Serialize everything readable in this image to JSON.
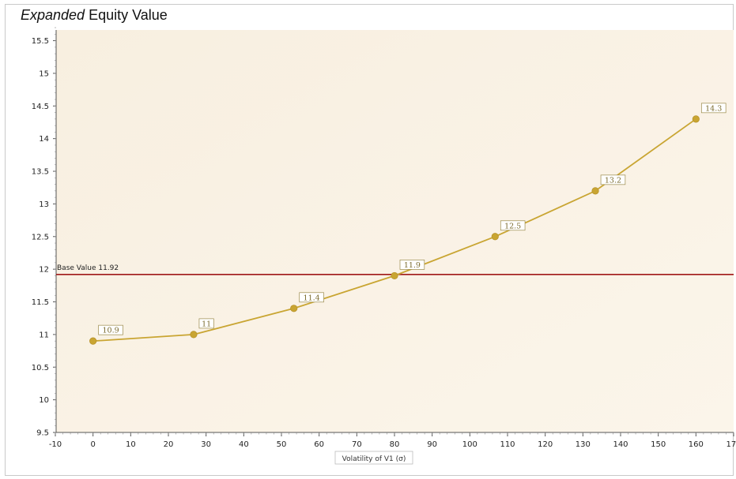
{
  "title_prefix": "Expanded",
  "title_rest": " Equity Value",
  "chart_data": {
    "type": "line",
    "title": "Expanded Equity Value",
    "xlabel": "Volatility of V1 (σ)",
    "ylabel": "",
    "xlim": [
      -10,
      170
    ],
    "ylim": [
      9.5,
      15.7
    ],
    "xticks": [
      -10,
      0,
      10,
      20,
      30,
      40,
      50,
      60,
      70,
      80,
      90,
      100,
      110,
      120,
      130,
      140,
      150,
      160,
      170
    ],
    "yticks": [
      9.5,
      10,
      10.5,
      11,
      11.5,
      12,
      12.5,
      13,
      13.5,
      14,
      14.5,
      15,
      15.5
    ],
    "series": [
      {
        "x": [
          0,
          26.7,
          53.3,
          80,
          106.7,
          133.3,
          160
        ],
        "y": [
          10.9,
          11,
          11.4,
          11.9,
          12.5,
          13.2,
          14.3
        ],
        "labels": [
          "10.9",
          "11",
          "11.4",
          "11.9",
          "12.5",
          "13.2",
          "14.3"
        ],
        "color": "#c9a532"
      }
    ],
    "base_line": {
      "value": 11.92,
      "label": "Base Value 11.92",
      "color": "#a01818"
    },
    "grid": false,
    "legend": "none"
  },
  "colors": {
    "plot_bg": "#f9f0e0",
    "line": "#c9a532",
    "marker": "#c9a532",
    "base": "#a01818",
    "axis": "#555555"
  }
}
